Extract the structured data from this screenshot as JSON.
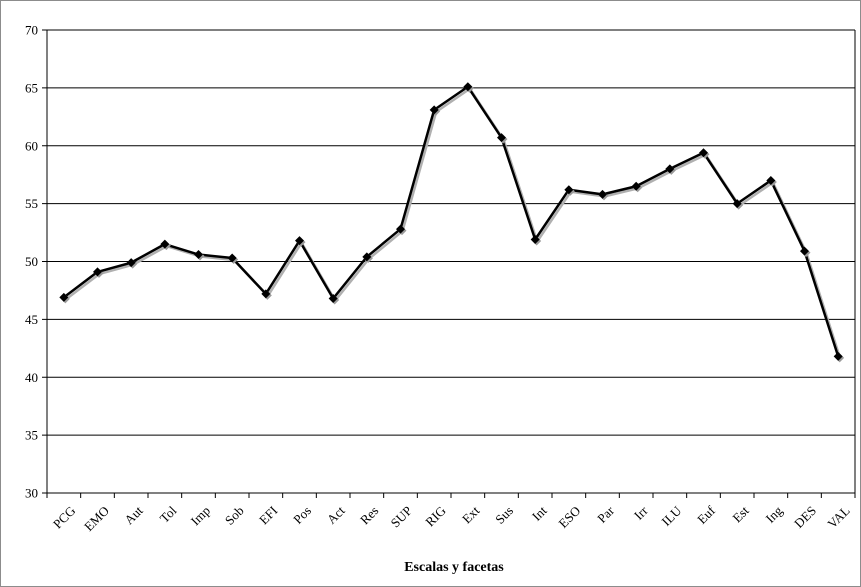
{
  "chart_data": {
    "type": "line",
    "title": "",
    "xlabel": "Escalas y facetas",
    "ylabel": "",
    "ylim": [
      30,
      70
    ],
    "yticks": [
      30,
      35,
      40,
      45,
      50,
      55,
      60,
      65,
      70
    ],
    "grid": "horizontal",
    "legend": "none",
    "categories": [
      "PCG",
      "EMO",
      "Aut",
      "Tol",
      "Imp",
      "Sob",
      "EFI",
      "Pos",
      "Act",
      "Res",
      "SUP",
      "RIG",
      "Ext",
      "Sus",
      "Int",
      "ESO",
      "Par",
      "Irr",
      "ILU",
      "Euf",
      "Est",
      "Ing",
      "DES",
      "VAL"
    ],
    "series": [
      {
        "values": [
          46.9,
          49.1,
          49.9,
          51.5,
          50.6,
          50.3,
          47.2,
          51.8,
          46.8,
          50.4,
          52.8,
          63.1,
          65.1,
          60.7,
          51.9,
          56.2,
          55.8,
          56.5,
          58.0,
          59.4,
          55.0,
          57.0,
          50.9,
          41.8
        ],
        "color": "#000000"
      }
    ]
  }
}
